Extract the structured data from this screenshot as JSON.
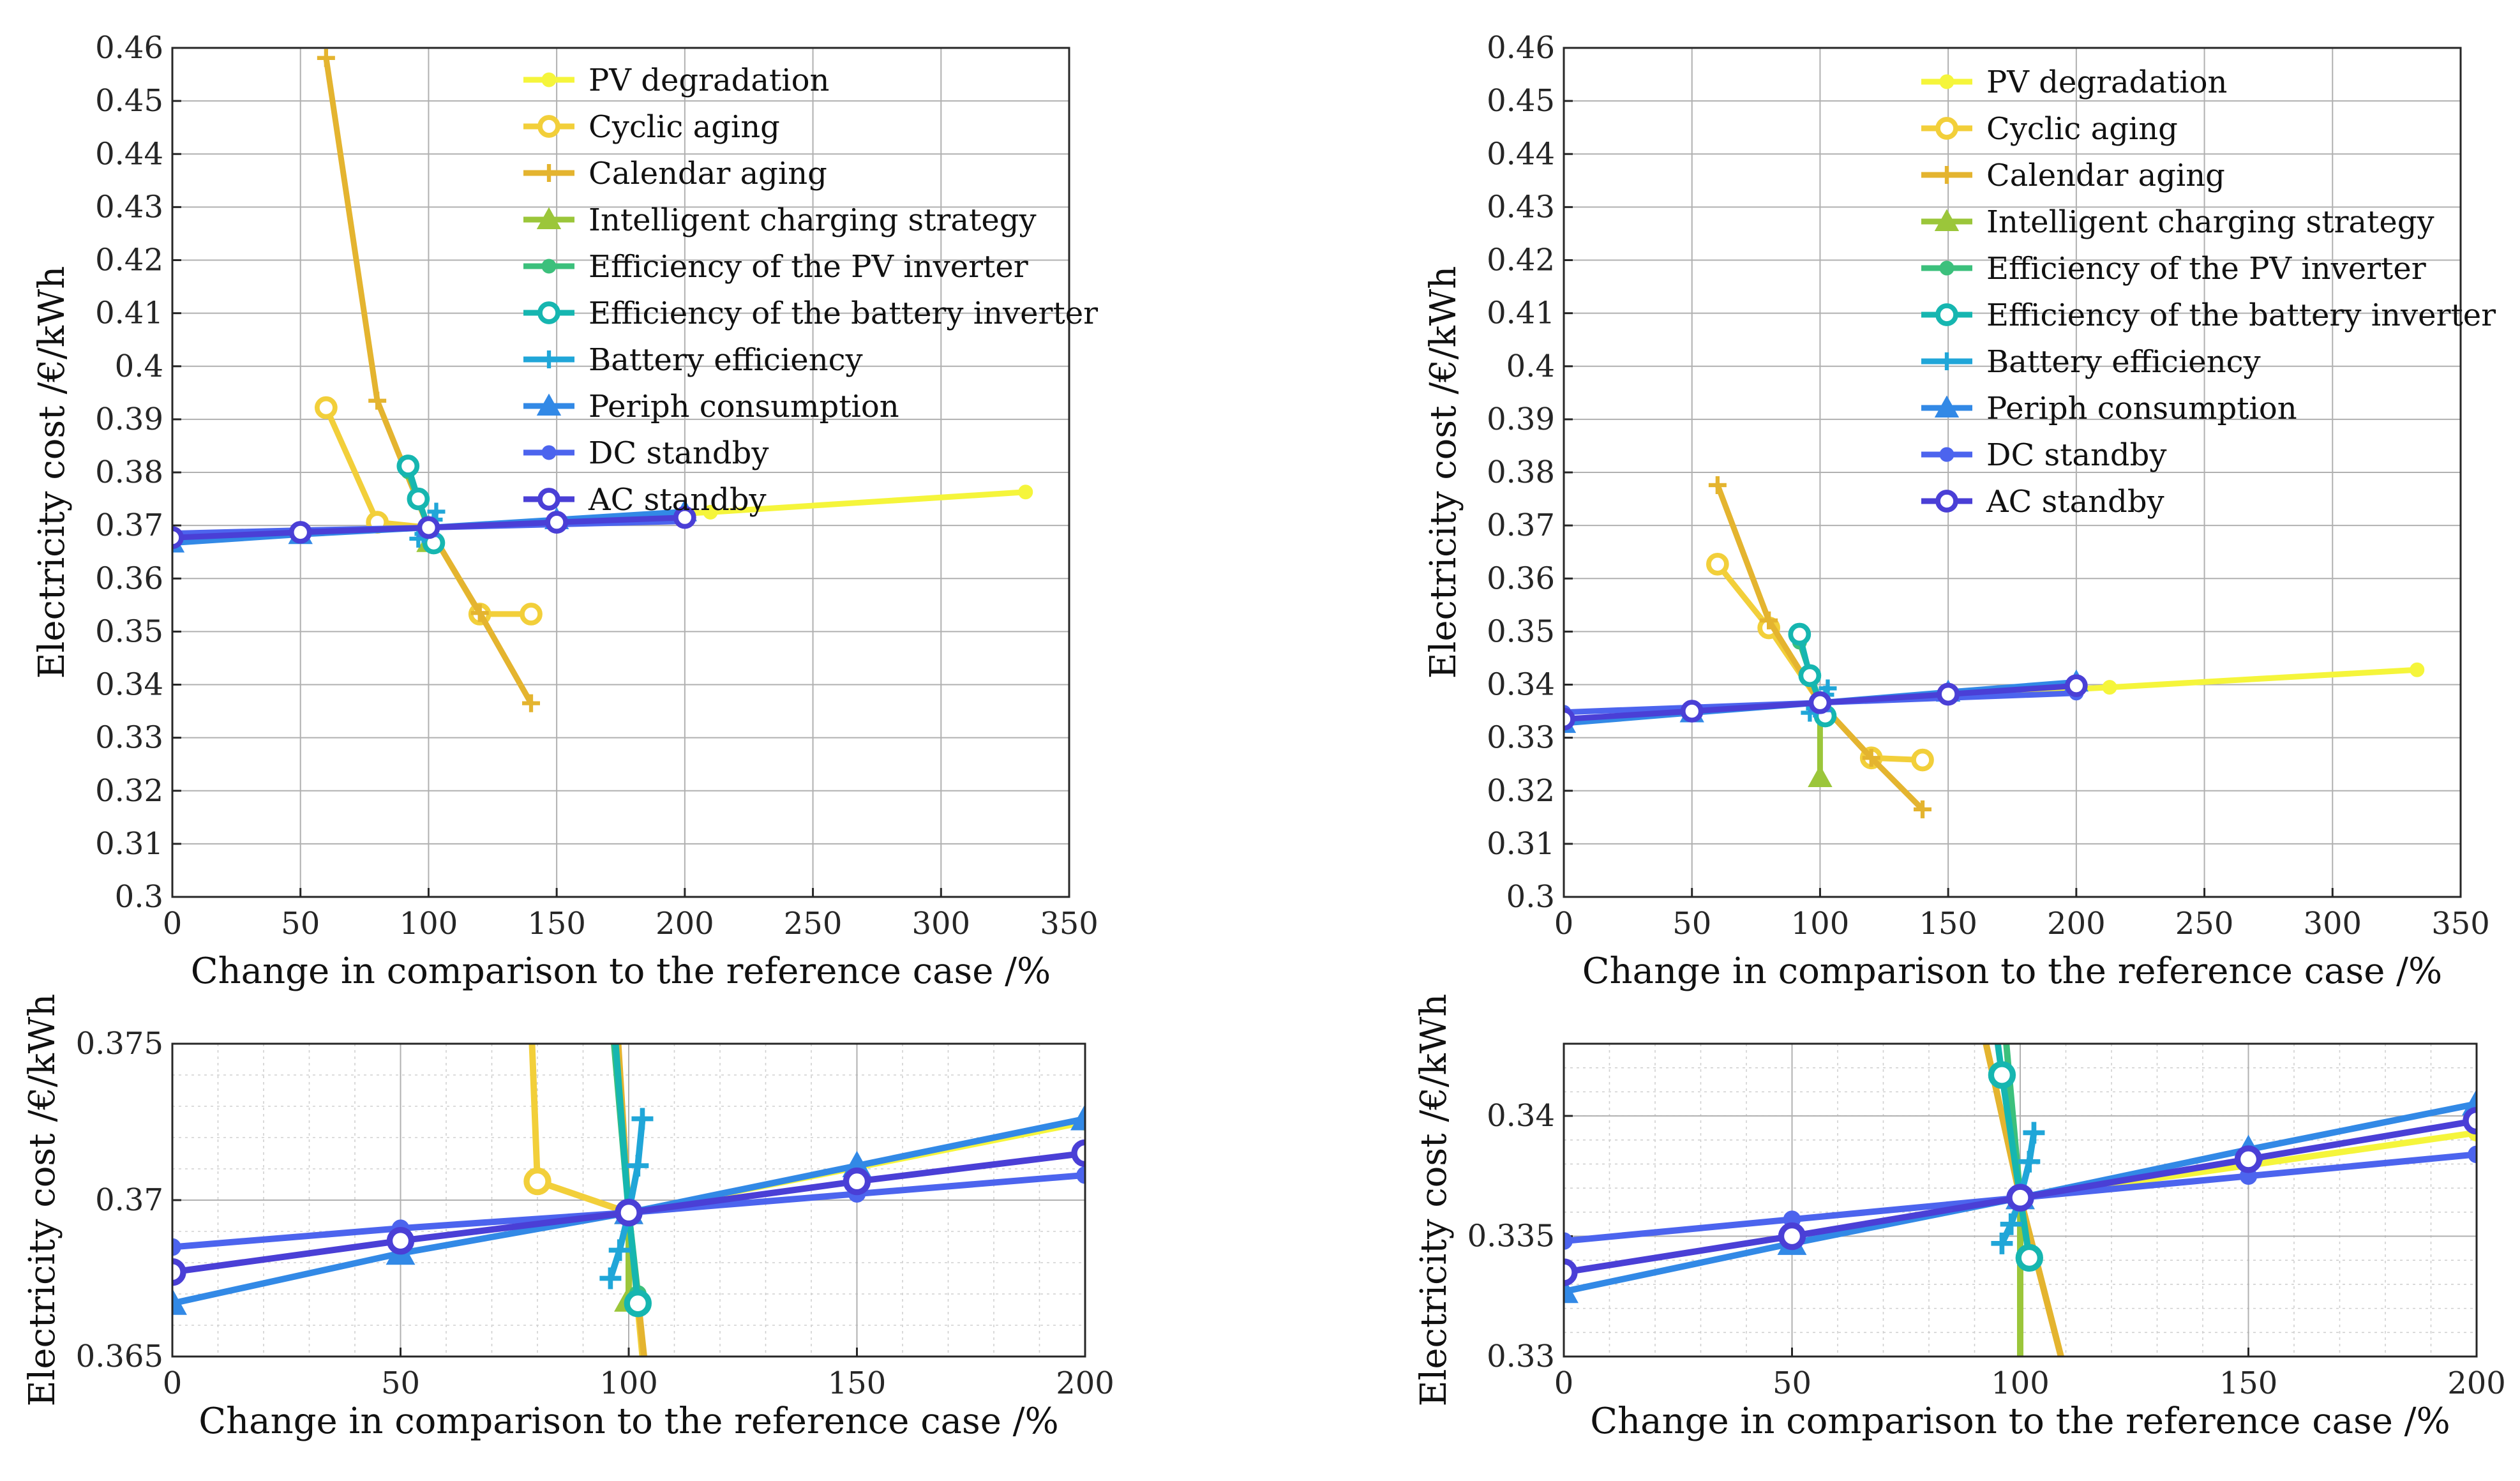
{
  "series_styles": [
    {
      "name": "PV degradation",
      "color": "#f5f53b",
      "marker": "dot"
    },
    {
      "name": "Cyclic aging",
      "color": "#f2cf3a",
      "marker": "circle"
    },
    {
      "name": "Calendar aging",
      "color": "#e4b42f",
      "marker": "plus"
    },
    {
      "name": "Intelligent charging strategy",
      "color": "#9bc63a",
      "marker": "triangle"
    },
    {
      "name": "Efficiency of the PV inverter",
      "color": "#3cc07c",
      "marker": "dot"
    },
    {
      "name": "Efficiency of the battery inverter",
      "color": "#16b6b0",
      "marker": "circle"
    },
    {
      "name": "Battery efficiency",
      "color": "#20a6d8",
      "marker": "plus"
    },
    {
      "name": "Periph consumption",
      "color": "#3289e6",
      "marker": "triangle"
    },
    {
      "name": "DC standby",
      "color": "#4c64ee",
      "marker": "dot"
    },
    {
      "name": "AC standby",
      "color": "#4a3fd6",
      "marker": "circle"
    }
  ],
  "chart_data": [
    {
      "id": "left-main",
      "type": "line",
      "xlabel": "Change in comparison to the reference case /%",
      "ylabel": "Electricity cost /€/kWh",
      "xlim": [
        0,
        350
      ],
      "ylim": [
        0.3,
        0.46
      ],
      "xticks": [
        0,
        50,
        100,
        150,
        200,
        250,
        300,
        350
      ],
      "xtick_labels": [
        "0",
        "50",
        "100",
        "150",
        "200",
        "250",
        "300",
        "350"
      ],
      "yticks": [
        0.3,
        0.31,
        0.32,
        0.33,
        0.34,
        0.35,
        0.36,
        0.37,
        0.38,
        0.39,
        0.4,
        0.41,
        0.42,
        0.43,
        0.44,
        0.45,
        0.46
      ],
      "ytick_labels": [
        "0.3",
        "0.31",
        "0.32",
        "0.33",
        "0.34",
        "0.35",
        "0.36",
        "0.37",
        "0.38",
        "0.39",
        "0.4",
        "0.41",
        "0.42",
        "0.43",
        "0.44",
        "0.45",
        "0.46"
      ],
      "minor_grid": false,
      "legend": true,
      "legend_position": "top-right",
      "series": [
        {
          "name": "PV degradation",
          "x": [
            100,
            210,
            333
          ],
          "y": [
            0.3696,
            0.3725,
            0.3763
          ]
        },
        {
          "name": "Cyclic aging",
          "x": [
            60,
            80,
            100,
            120,
            140
          ],
          "y": [
            0.3922,
            0.3706,
            0.3696,
            0.3533,
            0.3533
          ]
        },
        {
          "name": "Calendar aging",
          "x": [
            60,
            80,
            100,
            120,
            140
          ],
          "y": [
            0.4581,
            0.3935,
            0.3696,
            0.3535,
            0.3365
          ]
        },
        {
          "name": "Intelligent charging strategy",
          "x": [
            100,
            100
          ],
          "y": [
            0.3696,
            0.3668
          ]
        },
        {
          "name": "Efficiency of the PV inverter",
          "x": [
            92,
            100,
            102
          ],
          "y": [
            0.3801,
            0.3696,
            0.367
          ]
        },
        {
          "name": "Efficiency of the battery inverter",
          "x": [
            92,
            96,
            100,
            102
          ],
          "y": [
            0.3812,
            0.375,
            0.3696,
            0.3667
          ]
        },
        {
          "name": "Battery efficiency",
          "x": [
            96,
            98,
            100,
            102,
            103
          ],
          "y": [
            0.3675,
            0.3684,
            0.3696,
            0.3711,
            0.3726
          ]
        },
        {
          "name": "Periph consumption",
          "x": [
            0,
            50,
            100,
            150,
            200
          ],
          "y": [
            0.3667,
            0.3683,
            0.3696,
            0.3711,
            0.3726
          ]
        },
        {
          "name": "DC standby",
          "x": [
            0,
            50,
            100,
            150,
            200
          ],
          "y": [
            0.3685,
            0.3691,
            0.3696,
            0.3702,
            0.3708
          ]
        },
        {
          "name": "AC standby",
          "x": [
            0,
            50,
            100,
            150,
            200
          ],
          "y": [
            0.3677,
            0.3687,
            0.3696,
            0.3706,
            0.3715
          ]
        }
      ]
    },
    {
      "id": "right-main",
      "type": "line",
      "xlabel": "Change in comparison to the reference case /%",
      "ylabel": "Electricity cost /€/kWh",
      "xlim": [
        0,
        350
      ],
      "ylim": [
        0.3,
        0.46
      ],
      "xticks": [
        0,
        50,
        100,
        150,
        200,
        250,
        300,
        350
      ],
      "xtick_labels": [
        "0",
        "50",
        "100",
        "150",
        "200",
        "250",
        "300",
        "350"
      ],
      "yticks": [
        0.3,
        0.31,
        0.32,
        0.33,
        0.34,
        0.35,
        0.36,
        0.37,
        0.38,
        0.39,
        0.4,
        0.41,
        0.42,
        0.43,
        0.44,
        0.45,
        0.46
      ],
      "ytick_labels": [
        "0.3",
        "0.31",
        "0.32",
        "0.33",
        "0.34",
        "0.35",
        "0.36",
        "0.37",
        "0.38",
        "0.39",
        "0.4",
        "0.41",
        "0.42",
        "0.43",
        "0.44",
        "0.45",
        "0.46"
      ],
      "minor_grid": false,
      "legend": true,
      "legend_position": "top-right",
      "series": [
        {
          "name": "PV degradation",
          "x": [
            100,
            213,
            333
          ],
          "y": [
            0.3366,
            0.3395,
            0.3428
          ]
        },
        {
          "name": "Cyclic aging",
          "x": [
            60,
            80,
            100,
            120,
            140
          ],
          "y": [
            0.3627,
            0.3507,
            0.3366,
            0.3262,
            0.3258
          ]
        },
        {
          "name": "Calendar aging",
          "x": [
            60,
            80,
            100,
            120,
            140
          ],
          "y": [
            0.3776,
            0.3521,
            0.3366,
            0.3262,
            0.3165
          ]
        },
        {
          "name": "Intelligent charging strategy",
          "x": [
            100,
            100
          ],
          "y": [
            0.3366,
            0.3225
          ]
        },
        {
          "name": "Efficiency of the PV inverter",
          "x": [
            92,
            100,
            102
          ],
          "y": [
            0.348,
            0.3366,
            0.3345
          ]
        },
        {
          "name": "Efficiency of the battery inverter",
          "x": [
            92,
            96,
            100,
            102
          ],
          "y": [
            0.3495,
            0.3417,
            0.3366,
            0.3341
          ]
        },
        {
          "name": "Battery efficiency",
          "x": [
            96,
            98,
            100,
            102,
            103
          ],
          "y": [
            0.3347,
            0.3355,
            0.3366,
            0.3381,
            0.3393
          ]
        },
        {
          "name": "Periph consumption",
          "x": [
            0,
            50,
            100,
            150,
            200
          ],
          "y": [
            0.3327,
            0.3347,
            0.3366,
            0.3386,
            0.3405
          ]
        },
        {
          "name": "DC standby",
          "x": [
            0,
            50,
            100,
            150,
            200
          ],
          "y": [
            0.3348,
            0.3357,
            0.3366,
            0.3375,
            0.3384
          ]
        },
        {
          "name": "AC standby",
          "x": [
            0,
            50,
            100,
            150,
            200
          ],
          "y": [
            0.3335,
            0.335,
            0.3366,
            0.3382,
            0.3398
          ]
        }
      ]
    },
    {
      "id": "left-zoom",
      "type": "line",
      "xlabel": "Change in comparison to the reference case /%",
      "ylabel": "Electricity cost /€/kWh",
      "xlim": [
        0,
        200
      ],
      "ylim": [
        0.365,
        0.375
      ],
      "xticks": [
        0,
        50,
        100,
        150,
        200
      ],
      "xtick_labels": [
        "0",
        "50",
        "100",
        "150",
        "200"
      ],
      "yticks": [
        0.365,
        0.37,
        0.375
      ],
      "ytick_labels": [
        "0.365",
        "0.37",
        "0.375"
      ],
      "minor_grid": true,
      "legend": false,
      "series": [
        {
          "name": "PV degradation",
          "x": [
            100,
            200
          ],
          "y": [
            0.3696,
            0.3725
          ]
        },
        {
          "name": "Cyclic aging",
          "x": [
            78,
            80,
            100,
            104
          ],
          "y": [
            0.378,
            0.3706,
            0.3696,
            0.3635
          ]
        },
        {
          "name": "Calendar aging",
          "x": [
            96,
            100,
            107
          ],
          "y": [
            0.379,
            0.3696,
            0.36
          ]
        },
        {
          "name": "Intelligent charging strategy",
          "x": [
            100,
            100
          ],
          "y": [
            0.3696,
            0.3668
          ]
        },
        {
          "name": "Efficiency of the PV inverter",
          "x": [
            95,
            100,
            102
          ],
          "y": [
            0.378,
            0.3696,
            0.367
          ]
        },
        {
          "name": "Efficiency of the battery inverter",
          "x": [
            95,
            100,
            102
          ],
          "y": [
            0.379,
            0.3696,
            0.3667
          ]
        },
        {
          "name": "Battery efficiency",
          "x": [
            96,
            98,
            100,
            102,
            103
          ],
          "y": [
            0.3675,
            0.3684,
            0.3696,
            0.3711,
            0.3726
          ]
        },
        {
          "name": "Periph consumption",
          "x": [
            0,
            50,
            100,
            150,
            200
          ],
          "y": [
            0.3667,
            0.3683,
            0.3696,
            0.3711,
            0.3726
          ]
        },
        {
          "name": "DC standby",
          "x": [
            0,
            50,
            100,
            150,
            200
          ],
          "y": [
            0.3685,
            0.3691,
            0.3696,
            0.3702,
            0.3708
          ]
        },
        {
          "name": "AC standby",
          "x": [
            0,
            50,
            100,
            150,
            200
          ],
          "y": [
            0.3677,
            0.3687,
            0.3696,
            0.3706,
            0.3715
          ]
        }
      ]
    },
    {
      "id": "right-zoom",
      "type": "line",
      "xlabel": "Change in comparison to the reference case /%",
      "ylabel": "Electricity cost /€/kWh",
      "xlim": [
        0,
        200
      ],
      "ylim": [
        0.33,
        0.343
      ],
      "xticks": [
        0,
        50,
        100,
        150,
        200
      ],
      "xtick_labels": [
        "0",
        "50",
        "100",
        "150",
        "200"
      ],
      "yticks": [
        0.33,
        0.335,
        0.34
      ],
      "ytick_labels": [
        "0.33",
        "0.335",
        "0.34"
      ],
      "minor_grid": true,
      "legend": false,
      "series": [
        {
          "name": "PV degradation",
          "x": [
            100,
            200
          ],
          "y": [
            0.3366,
            0.3393
          ]
        },
        {
          "name": "Cyclic aging",
          "x": [
            89,
            100,
            113
          ],
          "y": [
            0.346,
            0.3366,
            0.327
          ]
        },
        {
          "name": "Calendar aging",
          "x": [
            89,
            100,
            113
          ],
          "y": [
            0.346,
            0.3366,
            0.327
          ]
        },
        {
          "name": "Intelligent charging strategy",
          "x": [
            100,
            100
          ],
          "y": [
            0.3366,
            0.327
          ]
        },
        {
          "name": "Efficiency of the PV inverter",
          "x": [
            96,
            100,
            102
          ],
          "y": [
            0.345,
            0.3366,
            0.3341
          ]
        },
        {
          "name": "Efficiency of the battery inverter",
          "x": [
            93,
            96,
            100,
            102
          ],
          "y": [
            0.346,
            0.3417,
            0.3366,
            0.3341
          ]
        },
        {
          "name": "Battery efficiency",
          "x": [
            96,
            98,
            100,
            102,
            103
          ],
          "y": [
            0.3347,
            0.3355,
            0.3366,
            0.3381,
            0.3393
          ]
        },
        {
          "name": "Periph consumption",
          "x": [
            0,
            50,
            100,
            150,
            200
          ],
          "y": [
            0.3327,
            0.3347,
            0.3366,
            0.3386,
            0.3405
          ]
        },
        {
          "name": "DC standby",
          "x": [
            0,
            50,
            100,
            150,
            200
          ],
          "y": [
            0.3348,
            0.3357,
            0.3366,
            0.3375,
            0.3384
          ]
        },
        {
          "name": "AC standby",
          "x": [
            0,
            50,
            100,
            150,
            200
          ],
          "y": [
            0.3335,
            0.335,
            0.3366,
            0.3382,
            0.3398
          ]
        }
      ]
    }
  ]
}
